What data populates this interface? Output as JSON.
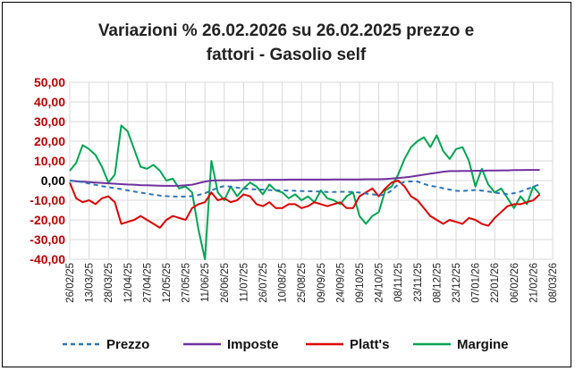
{
  "chart_data": {
    "type": "line",
    "title_line1": "Variazioni % 26.02.2026 su 26.02.2025 prezzo e",
    "title_line2": "fattori - Gasolio self",
    "ylim": [
      -40,
      50
    ],
    "yticks": [
      "50,00",
      "40,00",
      "30,00",
      "20,00",
      "10,00",
      "0,00",
      "-10,00",
      "-20,00",
      "-30,00",
      "-40,00"
    ],
    "ytick_values": [
      50,
      40,
      30,
      20,
      10,
      0,
      -10,
      -20,
      -30,
      -40
    ],
    "ytick_colors": [
      "#c00000",
      "#c00000",
      "#c00000",
      "#c00000",
      "#c00000",
      "#000000",
      "#c00000",
      "#c00000",
      "#c00000",
      "#c00000"
    ],
    "x_start": "26/02/25",
    "x_end": "08/03/26",
    "xticks": [
      "26/02/25",
      "13/03/25",
      "28/03/25",
      "12/04/25",
      "27/04/25",
      "12/05/25",
      "27/05/25",
      "11/06/25",
      "26/06/25",
      "11/07/25",
      "26/07/25",
      "10/08/25",
      "25/08/25",
      "09/09/25",
      "24/09/25",
      "09/10/25",
      "24/10/25",
      "08/11/25",
      "23/11/25",
      "08/12/25",
      "23/12/25",
      "07/01/26",
      "22/01/26",
      "06/02/26",
      "21/02/26",
      "08/03/26"
    ],
    "grid": true,
    "legend_position": "bottom",
    "x_days": [
      0,
      5,
      10,
      15,
      20,
      25,
      30,
      35,
      40,
      45,
      50,
      55,
      60,
      65,
      70,
      75,
      80,
      85,
      90,
      95,
      100,
      105,
      110,
      115,
      120,
      125,
      130,
      135,
      140,
      145,
      150,
      155,
      160,
      165,
      170,
      175,
      180,
      185,
      190,
      195,
      200,
      205,
      210,
      215,
      220,
      225,
      230,
      235,
      240,
      245,
      250,
      255,
      260,
      265,
      270,
      275,
      280,
      285,
      290,
      295,
      300,
      305,
      310,
      315,
      320,
      325,
      330,
      335,
      340,
      345,
      350,
      355,
      360,
      365
    ],
    "series": [
      {
        "name": "Prezzo",
        "color": "#2e75b6",
        "dash": "5,4",
        "values": [
          0,
          -0.3,
          -0.8,
          -1.5,
          -2.2,
          -2.8,
          -3.3,
          -3.8,
          -4.3,
          -5,
          -5.6,
          -6.1,
          -6.7,
          -7.2,
          -7.6,
          -7.9,
          -8.1,
          -8.2,
          -8.1,
          -7.9,
          -7.3,
          -6.4,
          -5.1,
          -3.6,
          -2.8,
          -3.1,
          -3.6,
          -4,
          -4.3,
          -4.5,
          -4.6,
          -4.8,
          -4.9,
          -5,
          -5.1,
          -5.2,
          -5.3,
          -5.4,
          -5.5,
          -5.6,
          -5.8,
          -5.8,
          -5.7,
          -5.7,
          -5.8,
          -6.1,
          -6.6,
          -7,
          -7.4,
          -7.2,
          -5,
          -2,
          -0.6,
          -0.4,
          -0.5,
          -1.7,
          -2.7,
          -3.2,
          -3.9,
          -4.6,
          -5.2,
          -5.3,
          -5,
          -4.8,
          -5.1,
          -5.6,
          -6.1,
          -6.6,
          -6.9,
          -6.4,
          -5.6,
          -4.3,
          -3.2,
          -1.8
        ]
      },
      {
        "name": "Imposte",
        "color": "#7030a0",
        "dash": "",
        "values": [
          0,
          -0.3,
          -0.6,
          -0.8,
          -1,
          -1.2,
          -1.4,
          -1.6,
          -1.8,
          -2,
          -2.1,
          -2.3,
          -2.4,
          -2.5,
          -2.6,
          -2.7,
          -2.7,
          -2.6,
          -2.4,
          -2.1,
          -1.3,
          -0.5,
          0,
          0.1,
          0.2,
          0.2,
          0.2,
          0.3,
          0.3,
          0.3,
          0.3,
          0.4,
          0.4,
          0.4,
          0.5,
          0.5,
          0.5,
          0.5,
          0.5,
          0.5,
          0.5,
          0.6,
          0.6,
          0.6,
          0.6,
          0.6,
          0.7,
          0.7,
          0.7,
          0.8,
          1,
          1.3,
          1.6,
          2,
          2.5,
          3,
          3.5,
          4,
          4.5,
          4.8,
          4.8,
          4.9,
          4.9,
          5,
          5,
          5.1,
          5.1,
          5.2,
          5.2,
          5.3,
          5.3,
          5.4,
          5.4,
          5.4
        ]
      },
      {
        "name": "Platt's",
        "color": "#e00000",
        "dash": "",
        "values": [
          -1,
          -9,
          -11,
          -10,
          -12,
          -9,
          -8,
          -11,
          -22,
          -21,
          -20,
          -18,
          -20,
          -22,
          -24,
          -20,
          -18,
          -19,
          -20,
          -14,
          -12,
          -11,
          -6,
          -10,
          -9,
          -11,
          -10,
          -7,
          -8,
          -12,
          -13,
          -11,
          -14,
          -14,
          -12,
          -12,
          -14,
          -13,
          -11,
          -12,
          -13,
          -12,
          -11,
          -14,
          -14,
          -8,
          -6,
          -4,
          -8,
          -4,
          -1,
          0,
          -3,
          -8,
          -10,
          -14,
          -18,
          -20,
          -22,
          -20,
          -21,
          -22,
          -19,
          -20,
          -22,
          -23,
          -19,
          -16,
          -13,
          -12,
          -12,
          -11,
          -10,
          -7
        ]
      },
      {
        "name": "Margine",
        "color": "#00a651",
        "dash": "",
        "values": [
          5,
          9,
          18,
          16,
          13,
          7,
          -1,
          3,
          28,
          25,
          16,
          7,
          6,
          8,
          5,
          0,
          1,
          -4,
          -3,
          -6,
          -25,
          -40,
          10,
          -6,
          -10,
          -3,
          -8,
          -4,
          -1,
          -3,
          -7,
          -2,
          -5,
          -6,
          -9,
          -7,
          -10,
          -8,
          -11,
          -5,
          -9,
          -10,
          -12,
          -8,
          -6,
          -18,
          -22,
          -18,
          -16,
          -5,
          -3,
          3,
          11,
          17,
          20,
          22,
          17,
          23,
          15,
          11,
          16,
          17,
          10,
          -3,
          6,
          -2,
          -6,
          -4,
          -9,
          -14,
          -8,
          -12,
          -3,
          -7
        ]
      }
    ]
  }
}
